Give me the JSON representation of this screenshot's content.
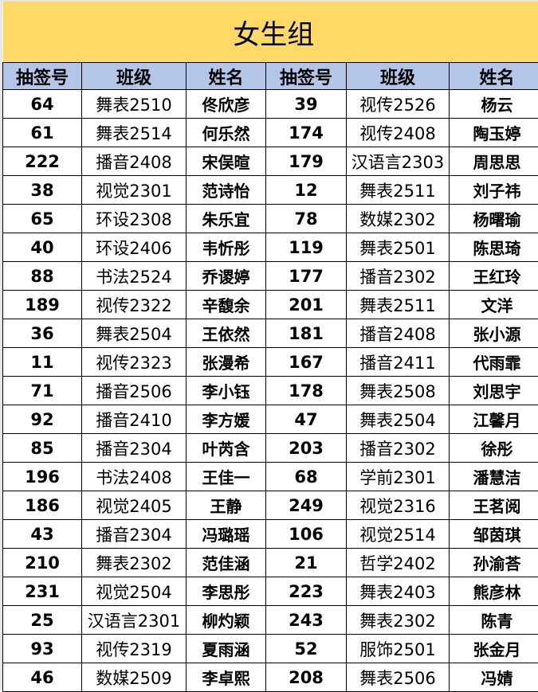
{
  "title": "女生组",
  "headers": [
    "抽签号",
    "班级",
    "姓名",
    "抽签号",
    "班级",
    "姓名"
  ],
  "colors": {
    "title_bg": "#FFD966",
    "header_bg": "#B4C6E7"
  },
  "rows": [
    [
      "64",
      "舞表2510",
      "佟欣彦",
      "39",
      "视传2526",
      "杨云"
    ],
    [
      "61",
      "舞表2514",
      "何乐然",
      "174",
      "视传2408",
      "陶玉婷"
    ],
    [
      "222",
      "播音2408",
      "宋俣暄",
      "179",
      "汉语言2303",
      "周思思"
    ],
    [
      "38",
      "视觉2301",
      "范诗怡",
      "12",
      "舞表2511",
      "刘子祎"
    ],
    [
      "65",
      "环设2308",
      "朱乐宜",
      "78",
      "数媒2302",
      "杨曙瑜"
    ],
    [
      "40",
      "环设2406",
      "韦忻彤",
      "119",
      "舞表2501",
      "陈思琦"
    ],
    [
      "88",
      "书法2524",
      "乔谡婷",
      "177",
      "播音2302",
      "王红玲"
    ],
    [
      "189",
      "视传2322",
      "辛馥余",
      "201",
      "舞表2511",
      "文洋"
    ],
    [
      "36",
      "舞表2504",
      "王依然",
      "181",
      "播音2408",
      "张小源"
    ],
    [
      "11",
      "视传2323",
      "张漫希",
      "167",
      "播音2411",
      "代雨霏"
    ],
    [
      "71",
      "播音2506",
      "李小钰",
      "178",
      "舞表2508",
      "刘思宇"
    ],
    [
      "92",
      "播音2410",
      "李方媛",
      "47",
      "舞表2504",
      "江馨月"
    ],
    [
      "85",
      "播音2304",
      "叶芮含",
      "203",
      "播音2302",
      "徐彤"
    ],
    [
      "196",
      "书法2408",
      "王佳一",
      "68",
      "学前2301",
      "潘慧洁"
    ],
    [
      "186",
      "视觉2405",
      "王静",
      "249",
      "视觉2316",
      "王茗阅"
    ],
    [
      "43",
      "播音2304",
      "冯璐瑶",
      "106",
      "视觉2514",
      "邹茵琪"
    ],
    [
      "210",
      "舞表2302",
      "范佳涵",
      "21",
      "哲学2402",
      "孙渝荅"
    ],
    [
      "231",
      "视觉2504",
      "李思彤",
      "223",
      "舞表2403",
      "熊彦林"
    ],
    [
      "25",
      "汉语言2301",
      "柳灼颖",
      "243",
      "舞表2302",
      "陈青"
    ],
    [
      "93",
      "视传2319",
      "夏雨涵",
      "52",
      "服饰2501",
      "张金月"
    ],
    [
      "46",
      "数媒2509",
      "李卓熙",
      "208",
      "舞表2506",
      "冯婧"
    ]
  ]
}
